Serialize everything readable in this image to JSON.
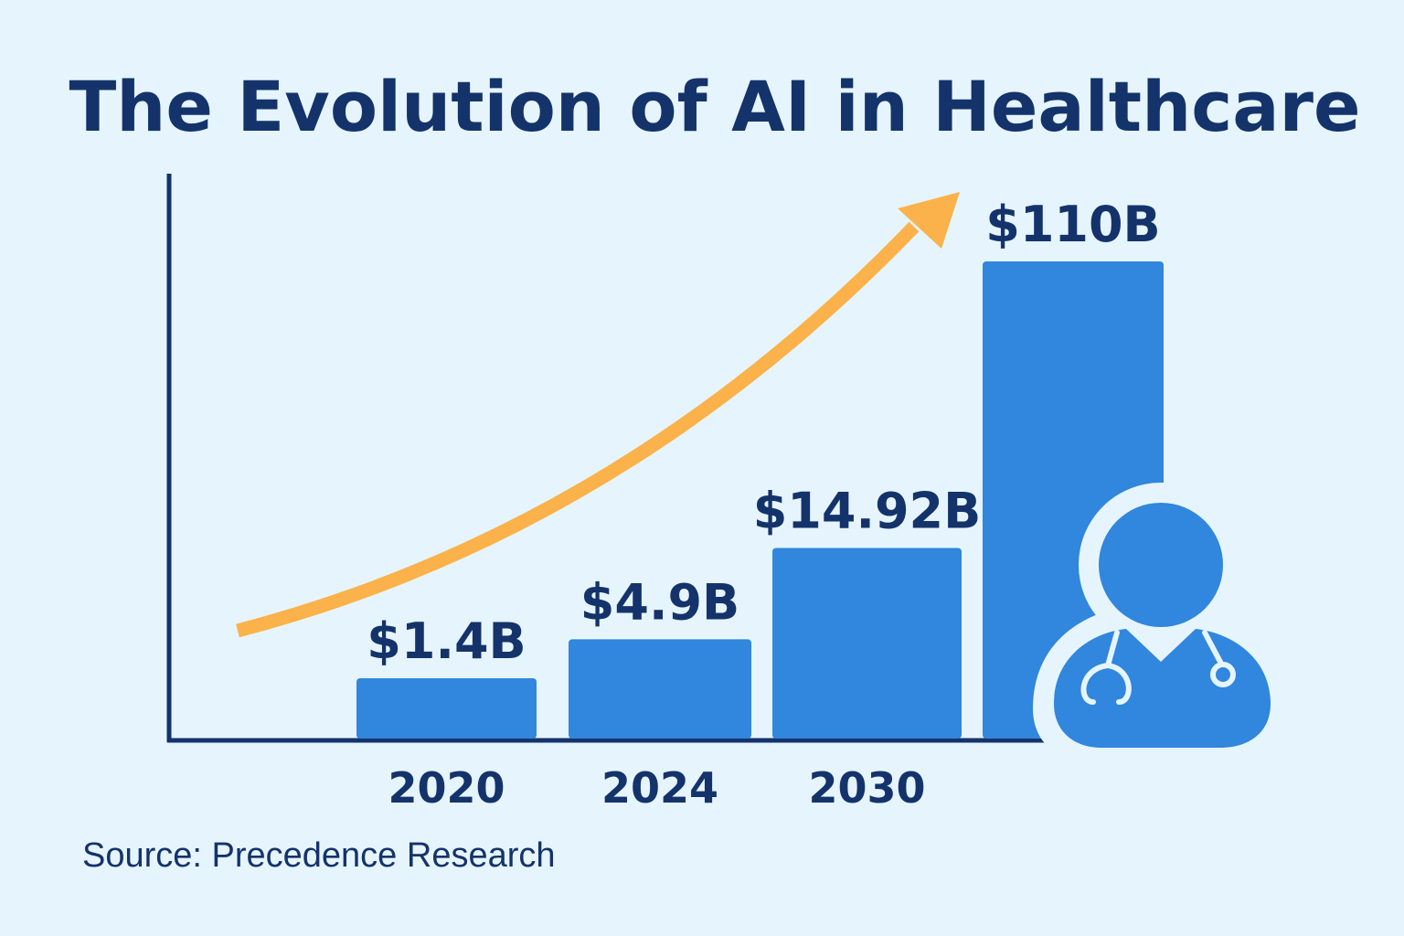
{
  "colors": {
    "background": "#e6f5fd",
    "bar": "#3186dd",
    "text": "#14336b",
    "axis": "#14336b",
    "arrow": "#fbb24a"
  },
  "icons": {
    "trend": "trend-arrow-icon",
    "doctor": "doctor-icon"
  },
  "chart_data": {
    "type": "bar",
    "title": "The Evolution of AI in Healthcare",
    "categories": [
      "2020",
      "2024",
      "2030",
      ""
    ],
    "values": [
      1.4,
      4.9,
      14.92,
      110
    ],
    "value_labels": [
      "$1.4B",
      "$4.9B",
      "$14.92B",
      "$110B"
    ],
    "xlabel": "",
    "ylabel": "",
    "unit": "USD billions",
    "grid": false,
    "legend": "none",
    "source": "Source: Precedence Research"
  }
}
